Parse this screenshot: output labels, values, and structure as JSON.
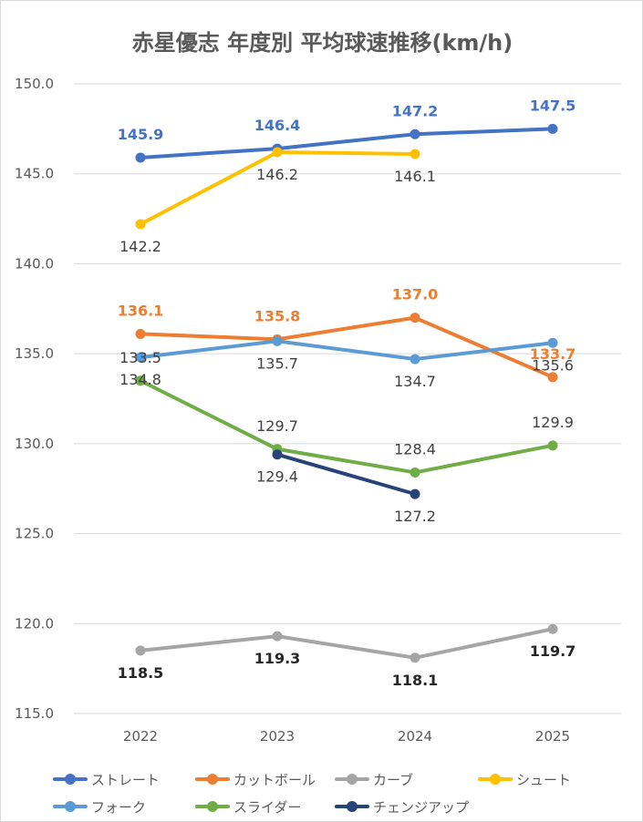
{
  "chart_data": {
    "type": "line",
    "title": "赤星優志 年度別 平均球速推移(km/h)",
    "categories": [
      "2022",
      "2023",
      "2024",
      "2025"
    ],
    "ylim": [
      115,
      150
    ],
    "y_ticks": [
      "150.0",
      "145.0",
      "140.0",
      "135.0",
      "130.0",
      "125.0",
      "120.0",
      "115.0"
    ],
    "grid": true,
    "legend_position": "bottom",
    "series": [
      {
        "name": "ストレート",
        "color": "#4472C4",
        "values": [
          145.9,
          146.4,
          147.2,
          147.5
        ],
        "labels": [
          "145.9",
          "146.4",
          "147.2",
          "147.5"
        ],
        "label_color": "#4472C4",
        "label_pos": "above"
      },
      {
        "name": "カットボール",
        "color": "#ED7D31",
        "values": [
          136.1,
          135.8,
          137.0,
          133.7
        ],
        "labels": [
          "136.1",
          "135.8",
          "137.0",
          "133.7"
        ],
        "label_color": "#ED7D31",
        "label_pos": "above"
      },
      {
        "name": "カーブ",
        "color": "#A5A5A5",
        "values": [
          118.5,
          119.3,
          118.1,
          119.7
        ],
        "labels": [
          "118.5",
          "119.3",
          "118.1",
          "119.7"
        ],
        "label_color": "#262626",
        "label_pos": "below"
      },
      {
        "name": "シュート",
        "color": "#FFC000",
        "values": [
          142.2,
          146.2,
          146.1,
          null
        ],
        "labels": [
          "142.2",
          "146.2",
          "146.1",
          ""
        ],
        "label_color": "#404040",
        "label_pos": "below"
      },
      {
        "name": "フォーク",
        "color": "#5B9BD5",
        "values": [
          134.8,
          135.7,
          134.7,
          135.6
        ],
        "labels": [
          "134.8",
          "135.7",
          "134.7",
          "135.6"
        ],
        "label_color": "#404040",
        "label_pos": "below"
      },
      {
        "name": "スライダー",
        "color": "#70AD47",
        "values": [
          133.5,
          129.7,
          128.4,
          129.9
        ],
        "labels": [
          "133.5",
          "129.7",
          "128.4",
          "129.9"
        ],
        "label_color": "#404040",
        "label_pos": "above"
      },
      {
        "name": "チェンジアップ",
        "color": "#264478",
        "values": [
          null,
          129.4,
          127.2,
          null
        ],
        "labels": [
          "",
          "129.4",
          "127.2",
          ""
        ],
        "label_color": "#404040",
        "label_pos": "below"
      }
    ]
  }
}
